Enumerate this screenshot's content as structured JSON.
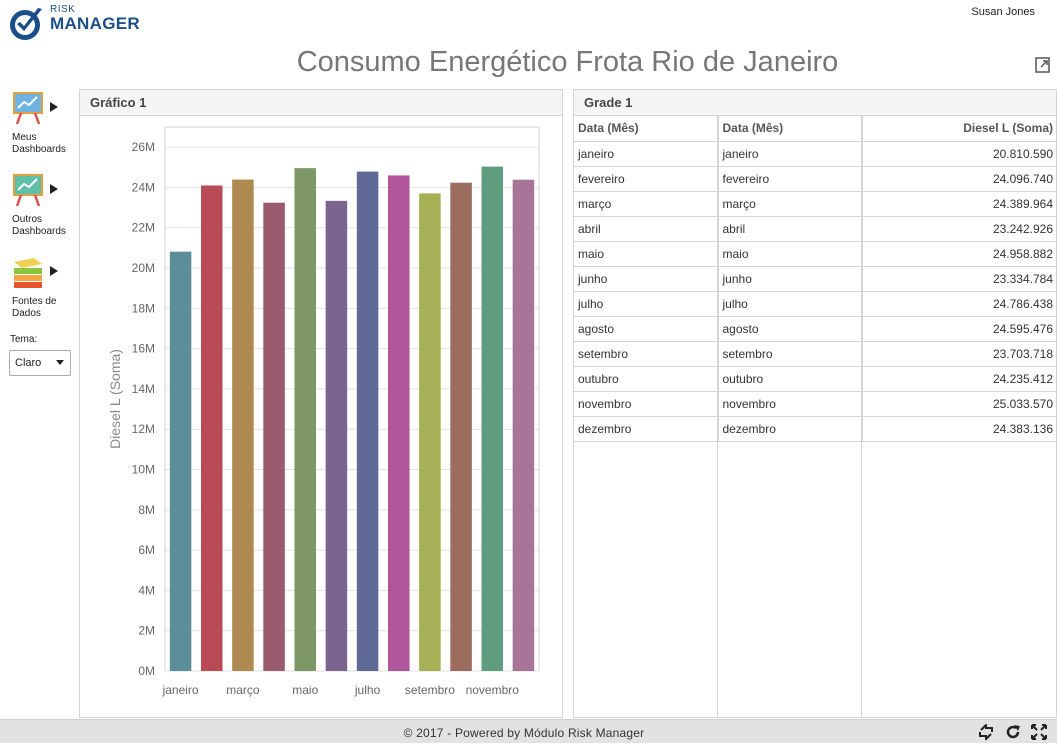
{
  "app": {
    "logo_small": "RISK",
    "logo_big": "MANAGER",
    "user_name": "Susan Jones",
    "page_title": "Consumo Energético Frota Rio de Janeiro",
    "export_icon": "export-icon"
  },
  "sidebar": {
    "items": [
      {
        "label_line1": "Meus",
        "label_line2": "Dashboards",
        "icon": "dashboard-chart-icon"
      },
      {
        "label_line1": "Outros",
        "label_line2": "Dashboards",
        "icon": "dashboard-chart-icon"
      },
      {
        "label_line1": "Fontes de",
        "label_line2": "Dados",
        "icon": "data-sources-icon"
      }
    ],
    "theme_label": "Tema:",
    "theme_value": "Claro"
  },
  "chart_panel": {
    "title": "Gráfico 1"
  },
  "chart_data": {
    "type": "bar",
    "title": "",
    "xlabel": "",
    "ylabel": "Diesel L (Soma)",
    "categories": [
      "janeiro",
      "fevereiro",
      "março",
      "abril",
      "maio",
      "junho",
      "julho",
      "agosto",
      "setembro",
      "outubro",
      "novembro",
      "dezembro"
    ],
    "values": [
      20810590,
      24096740,
      24389964,
      23242926,
      24958882,
      23334784,
      24786438,
      24595476,
      23703718,
      24235412,
      25033570,
      24383136
    ],
    "visible_x_ticks": [
      "janeiro",
      "março",
      "maio",
      "julho",
      "setembro",
      "novembro"
    ],
    "y_ticks": [
      "0M",
      "2M",
      "4M",
      "6M",
      "8M",
      "10M",
      "12M",
      "14M",
      "16M",
      "18M",
      "20M",
      "22M",
      "24M",
      "26M"
    ],
    "ylim": [
      0,
      27000000
    ],
    "grid": true,
    "colors": [
      "#5b8e98",
      "#b84b55",
      "#ae8a50",
      "#9a5b6e",
      "#7e9767",
      "#7c6490",
      "#5e6a95",
      "#b0549c",
      "#a6b055",
      "#9c6d5e",
      "#5e9d7e",
      "#a87498"
    ]
  },
  "grid_panel": {
    "title": "Grade 1",
    "columns": [
      "Data (Mês)",
      "Data (Mês)",
      "Diesel L (Soma)"
    ],
    "rows": [
      [
        "janeiro",
        "janeiro",
        "20.810.590"
      ],
      [
        "fevereiro",
        "fevereiro",
        "24.096.740"
      ],
      [
        "março",
        "março",
        "24.389.964"
      ],
      [
        "abril",
        "abril",
        "23.242.926"
      ],
      [
        "maio",
        "maio",
        "24.958.882"
      ],
      [
        "junho",
        "junho",
        "23.334.784"
      ],
      [
        "julho",
        "julho",
        "24.786.438"
      ],
      [
        "agosto",
        "agosto",
        "24.595.476"
      ],
      [
        "setembro",
        "setembro",
        "23.703.718"
      ],
      [
        "outubro",
        "outubro",
        "24.235.412"
      ],
      [
        "novembro",
        "novembro",
        "25.033.570"
      ],
      [
        "dezembro",
        "dezembro",
        "24.383.136"
      ]
    ]
  },
  "footer": {
    "text": "© 2017 - Powered by Módulo Risk Manager",
    "icons": [
      "swap-icon",
      "refresh-icon",
      "fullscreen-icon"
    ]
  }
}
